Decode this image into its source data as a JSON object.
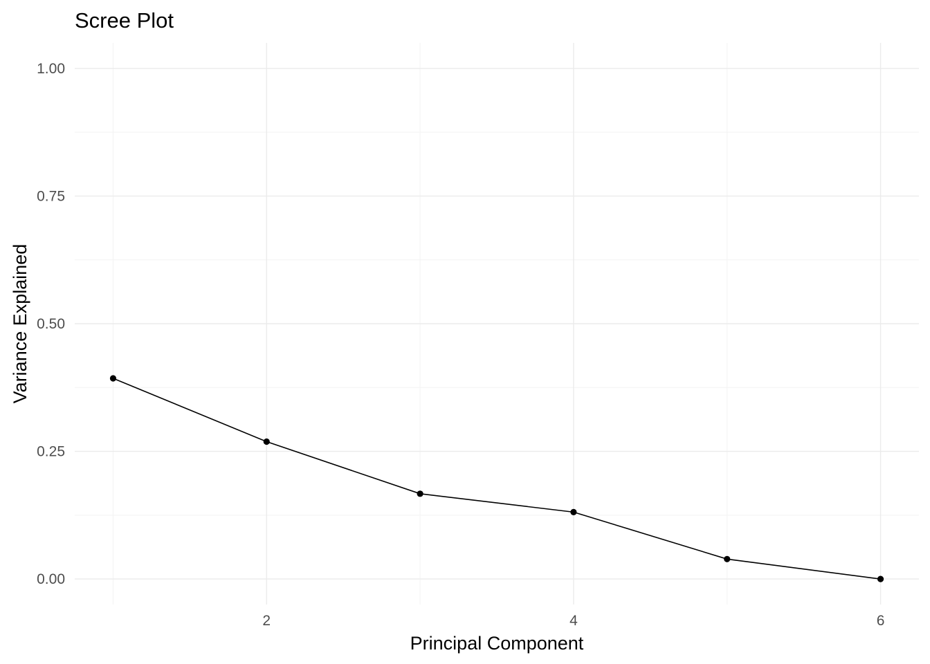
{
  "chart_data": {
    "type": "line",
    "title": "Scree Plot",
    "xlabel": "Principal Component",
    "ylabel": "Variance Explained",
    "x": [
      1,
      2,
      3,
      4,
      5,
      6
    ],
    "values": [
      0.393,
      0.269,
      0.167,
      0.131,
      0.039,
      0.0
    ],
    "xlim": [
      0.75,
      6.25
    ],
    "ylim": [
      -0.05,
      1.05
    ],
    "x_ticks": [
      2,
      4,
      6
    ],
    "x_tick_labels": [
      "2",
      "4",
      "6"
    ],
    "x_minor_ticks": [
      1,
      3,
      5
    ],
    "y_ticks": [
      0,
      0.25,
      0.5,
      0.75,
      1.0
    ],
    "y_tick_labels": [
      "0.00",
      "0.25",
      "0.50",
      "0.75",
      "1.00"
    ],
    "y_minor_ticks": [
      0.125,
      0.375,
      0.625,
      0.875
    ],
    "grid": true,
    "legend": "none",
    "colors": {
      "line": "#000000",
      "point": "#000000",
      "grid": "#ebebeb",
      "tick_text": "#4d4d4d"
    }
  }
}
